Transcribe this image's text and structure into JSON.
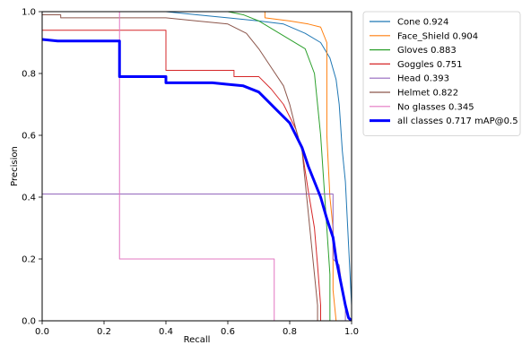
{
  "chart_data": {
    "type": "line",
    "xlabel": "Recall",
    "ylabel": "Precision",
    "xlim": [
      0,
      1
    ],
    "ylim": [
      0,
      1
    ],
    "x_ticks": [
      "0.0",
      "0.2",
      "0.4",
      "0.6",
      "0.8",
      "1.0"
    ],
    "y_ticks": [
      "0.0",
      "0.2",
      "0.4",
      "0.6",
      "0.8",
      "1.0"
    ],
    "grid": false,
    "legend_position": "outside-right",
    "series": [
      {
        "name": "Cone 0.924",
        "color": "#1f77b4",
        "width": "thin",
        "points": [
          [
            0,
            1
          ],
          [
            0.4,
            1
          ],
          [
            0.5,
            0.99
          ],
          [
            0.6,
            0.98
          ],
          [
            0.7,
            0.97
          ],
          [
            0.78,
            0.96
          ],
          [
            0.85,
            0.93
          ],
          [
            0.9,
            0.9
          ],
          [
            0.93,
            0.85
          ],
          [
            0.95,
            0.78
          ],
          [
            0.96,
            0.7
          ],
          [
            0.97,
            0.55
          ],
          [
            0.98,
            0.45
          ],
          [
            0.99,
            0.25
          ],
          [
            1.0,
            0.05
          ],
          [
            1.0,
            0
          ]
        ]
      },
      {
        "name": "Face_Shield 0.904",
        "color": "#ff7f0e",
        "width": "thin",
        "points": [
          [
            0,
            1
          ],
          [
            0.72,
            1
          ],
          [
            0.72,
            0.98
          ],
          [
            0.8,
            0.97
          ],
          [
            0.86,
            0.96
          ],
          [
            0.9,
            0.95
          ],
          [
            0.92,
            0.9
          ],
          [
            0.92,
            0.6
          ],
          [
            0.93,
            0.4
          ],
          [
            0.94,
            0.3
          ],
          [
            0.94,
            0.1
          ],
          [
            0.95,
            0
          ]
        ]
      },
      {
        "name": "Gloves 0.883",
        "color": "#2ca02c",
        "width": "thin",
        "points": [
          [
            0,
            1
          ],
          [
            0.6,
            1
          ],
          [
            0.65,
            0.99
          ],
          [
            0.7,
            0.97
          ],
          [
            0.75,
            0.94
          ],
          [
            0.8,
            0.91
          ],
          [
            0.85,
            0.88
          ],
          [
            0.88,
            0.8
          ],
          [
            0.89,
            0.7
          ],
          [
            0.9,
            0.6
          ],
          [
            0.91,
            0.45
          ],
          [
            0.92,
            0.3
          ],
          [
            0.93,
            0.15
          ],
          [
            0.93,
            0
          ]
        ]
      },
      {
        "name": "Goggles 0.751",
        "color": "#d62728",
        "width": "thin",
        "points": [
          [
            0,
            0.94
          ],
          [
            0.4,
            0.94
          ],
          [
            0.4,
            0.81
          ],
          [
            0.62,
            0.81
          ],
          [
            0.62,
            0.79
          ],
          [
            0.7,
            0.79
          ],
          [
            0.74,
            0.75
          ],
          [
            0.78,
            0.7
          ],
          [
            0.82,
            0.62
          ],
          [
            0.84,
            0.55
          ],
          [
            0.86,
            0.42
          ],
          [
            0.88,
            0.3
          ],
          [
            0.89,
            0.18
          ],
          [
            0.9,
            0.05
          ],
          [
            0.9,
            0
          ]
        ]
      },
      {
        "name": "Head 0.393",
        "color": "#9467bd",
        "width": "thin",
        "points": [
          [
            0,
            0.41
          ],
          [
            0.94,
            0.41
          ],
          [
            0.94,
            0.2
          ],
          [
            0.96,
            0.18
          ],
          [
            0.97,
            0.1
          ],
          [
            0.98,
            0.04
          ],
          [
            0.98,
            0
          ]
        ]
      },
      {
        "name": "Helmet 0.822",
        "color": "#8c564b",
        "width": "thin",
        "points": [
          [
            0,
            0.99
          ],
          [
            0.06,
            0.99
          ],
          [
            0.06,
            0.98
          ],
          [
            0.4,
            0.98
          ],
          [
            0.5,
            0.97
          ],
          [
            0.6,
            0.96
          ],
          [
            0.66,
            0.93
          ],
          [
            0.7,
            0.88
          ],
          [
            0.74,
            0.82
          ],
          [
            0.78,
            0.76
          ],
          [
            0.8,
            0.7
          ],
          [
            0.82,
            0.62
          ],
          [
            0.84,
            0.55
          ],
          [
            0.85,
            0.45
          ],
          [
            0.86,
            0.35
          ],
          [
            0.87,
            0.25
          ],
          [
            0.88,
            0.15
          ],
          [
            0.89,
            0.05
          ],
          [
            0.89,
            0
          ]
        ]
      },
      {
        "name": "No glasses 0.345",
        "color": "#e377c2",
        "width": "thin",
        "points": [
          [
            0.25,
            1
          ],
          [
            0.25,
            0.2
          ],
          [
            0.75,
            0.2
          ],
          [
            0.75,
            0
          ]
        ]
      },
      {
        "name": "all classes 0.717 mAP@0.5",
        "color": "#0000ff",
        "width": "thick",
        "points": [
          [
            0,
            0.91
          ],
          [
            0.05,
            0.905
          ],
          [
            0.25,
            0.905
          ],
          [
            0.25,
            0.79
          ],
          [
            0.4,
            0.79
          ],
          [
            0.4,
            0.77
          ],
          [
            0.5,
            0.77
          ],
          [
            0.55,
            0.77
          ],
          [
            0.6,
            0.765
          ],
          [
            0.65,
            0.76
          ],
          [
            0.7,
            0.74
          ],
          [
            0.72,
            0.72
          ],
          [
            0.76,
            0.68
          ],
          [
            0.8,
            0.64
          ],
          [
            0.82,
            0.6
          ],
          [
            0.84,
            0.56
          ],
          [
            0.86,
            0.5
          ],
          [
            0.88,
            0.45
          ],
          [
            0.9,
            0.4
          ],
          [
            0.92,
            0.33
          ],
          [
            0.94,
            0.27
          ],
          [
            0.95,
            0.2
          ],
          [
            0.96,
            0.15
          ],
          [
            0.97,
            0.1
          ],
          [
            0.98,
            0.05
          ],
          [
            0.99,
            0.01
          ],
          [
            1.0,
            0
          ]
        ]
      }
    ]
  }
}
